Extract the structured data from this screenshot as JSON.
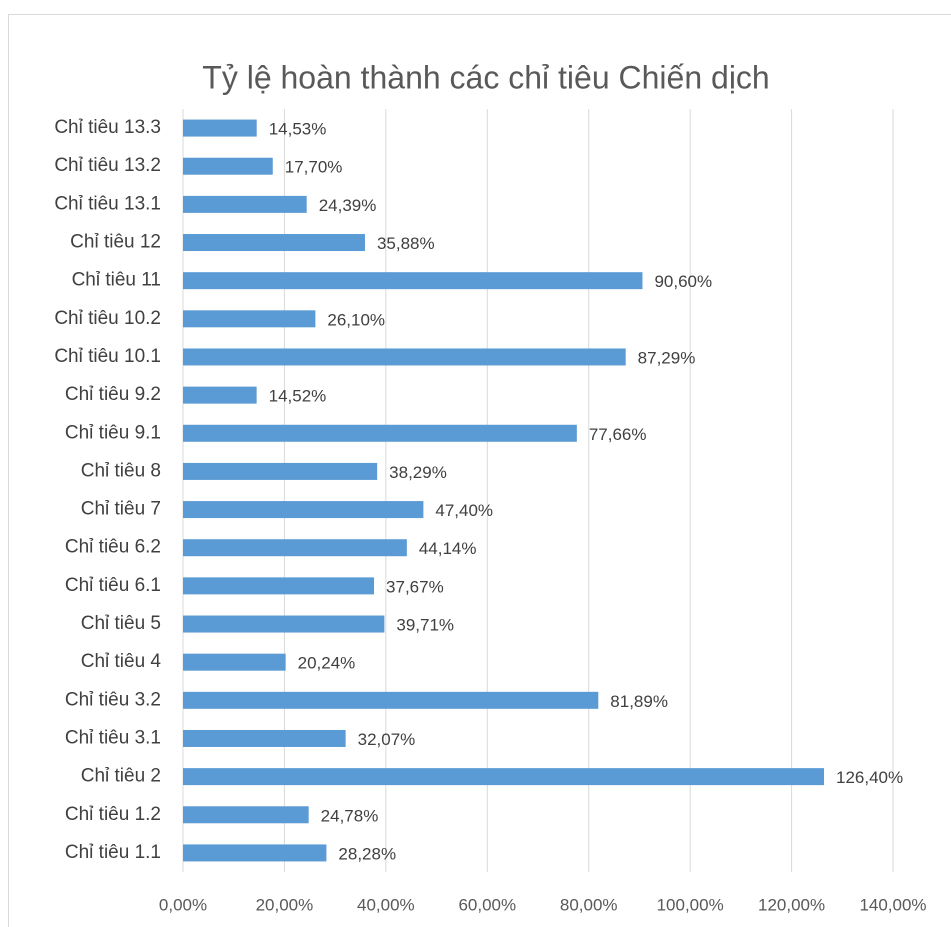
{
  "chart_data": {
    "type": "bar",
    "orientation": "horizontal",
    "title": "Tỷ lệ hoàn thành các chỉ tiêu Chiến dịch",
    "categories": [
      "Chỉ tiêu 13.3",
      "Chỉ tiêu 13.2",
      "Chỉ tiêu 13.1",
      "Chỉ tiêu 12",
      "Chỉ tiêu 11",
      "Chỉ tiêu 10.2",
      "Chỉ tiêu 10.1",
      "Chỉ tiêu 9.2",
      "Chỉ tiêu 9.1",
      "Chỉ tiêu 8",
      "Chỉ tiêu 7",
      "Chỉ tiêu 6.2",
      "Chỉ tiêu 6.1",
      "Chỉ tiêu 5",
      "Chỉ tiêu 4",
      "Chỉ tiêu 3.2",
      "Chỉ tiêu 3.1",
      "Chỉ tiêu 2",
      "Chỉ tiêu 1.2",
      "Chỉ tiêu 1.1"
    ],
    "values": [
      14.53,
      17.7,
      24.39,
      35.88,
      90.6,
      26.1,
      87.29,
      14.52,
      77.66,
      38.29,
      47.4,
      44.14,
      37.67,
      39.71,
      20.24,
      81.89,
      32.07,
      126.4,
      24.78,
      28.28
    ],
    "value_labels": [
      "14,53%",
      "17,70%",
      "24,39%",
      "35,88%",
      "90,60%",
      "26,10%",
      "87,29%",
      "14,52%",
      "77,66%",
      "38,29%",
      "47,40%",
      "44,14%",
      "37,67%",
      "39,71%",
      "20,24%",
      "81,89%",
      "32,07%",
      "126,40%",
      "24,78%",
      "28,28%"
    ],
    "color": "#5b9bd5",
    "xlim": [
      0,
      140
    ],
    "xticks": [
      {
        "value": 0,
        "label": "0,00%"
      },
      {
        "value": 20,
        "label": "20,00%"
      },
      {
        "value": 40,
        "label": "40,00%"
      },
      {
        "value": 60,
        "label": "60,00%"
      },
      {
        "value": 80,
        "label": "80,00%"
      },
      {
        "value": 100,
        "label": "100,00%"
      },
      {
        "value": 120,
        "label": "120,00%"
      },
      {
        "value": 140,
        "label": "140,00%"
      }
    ],
    "grid": true
  }
}
